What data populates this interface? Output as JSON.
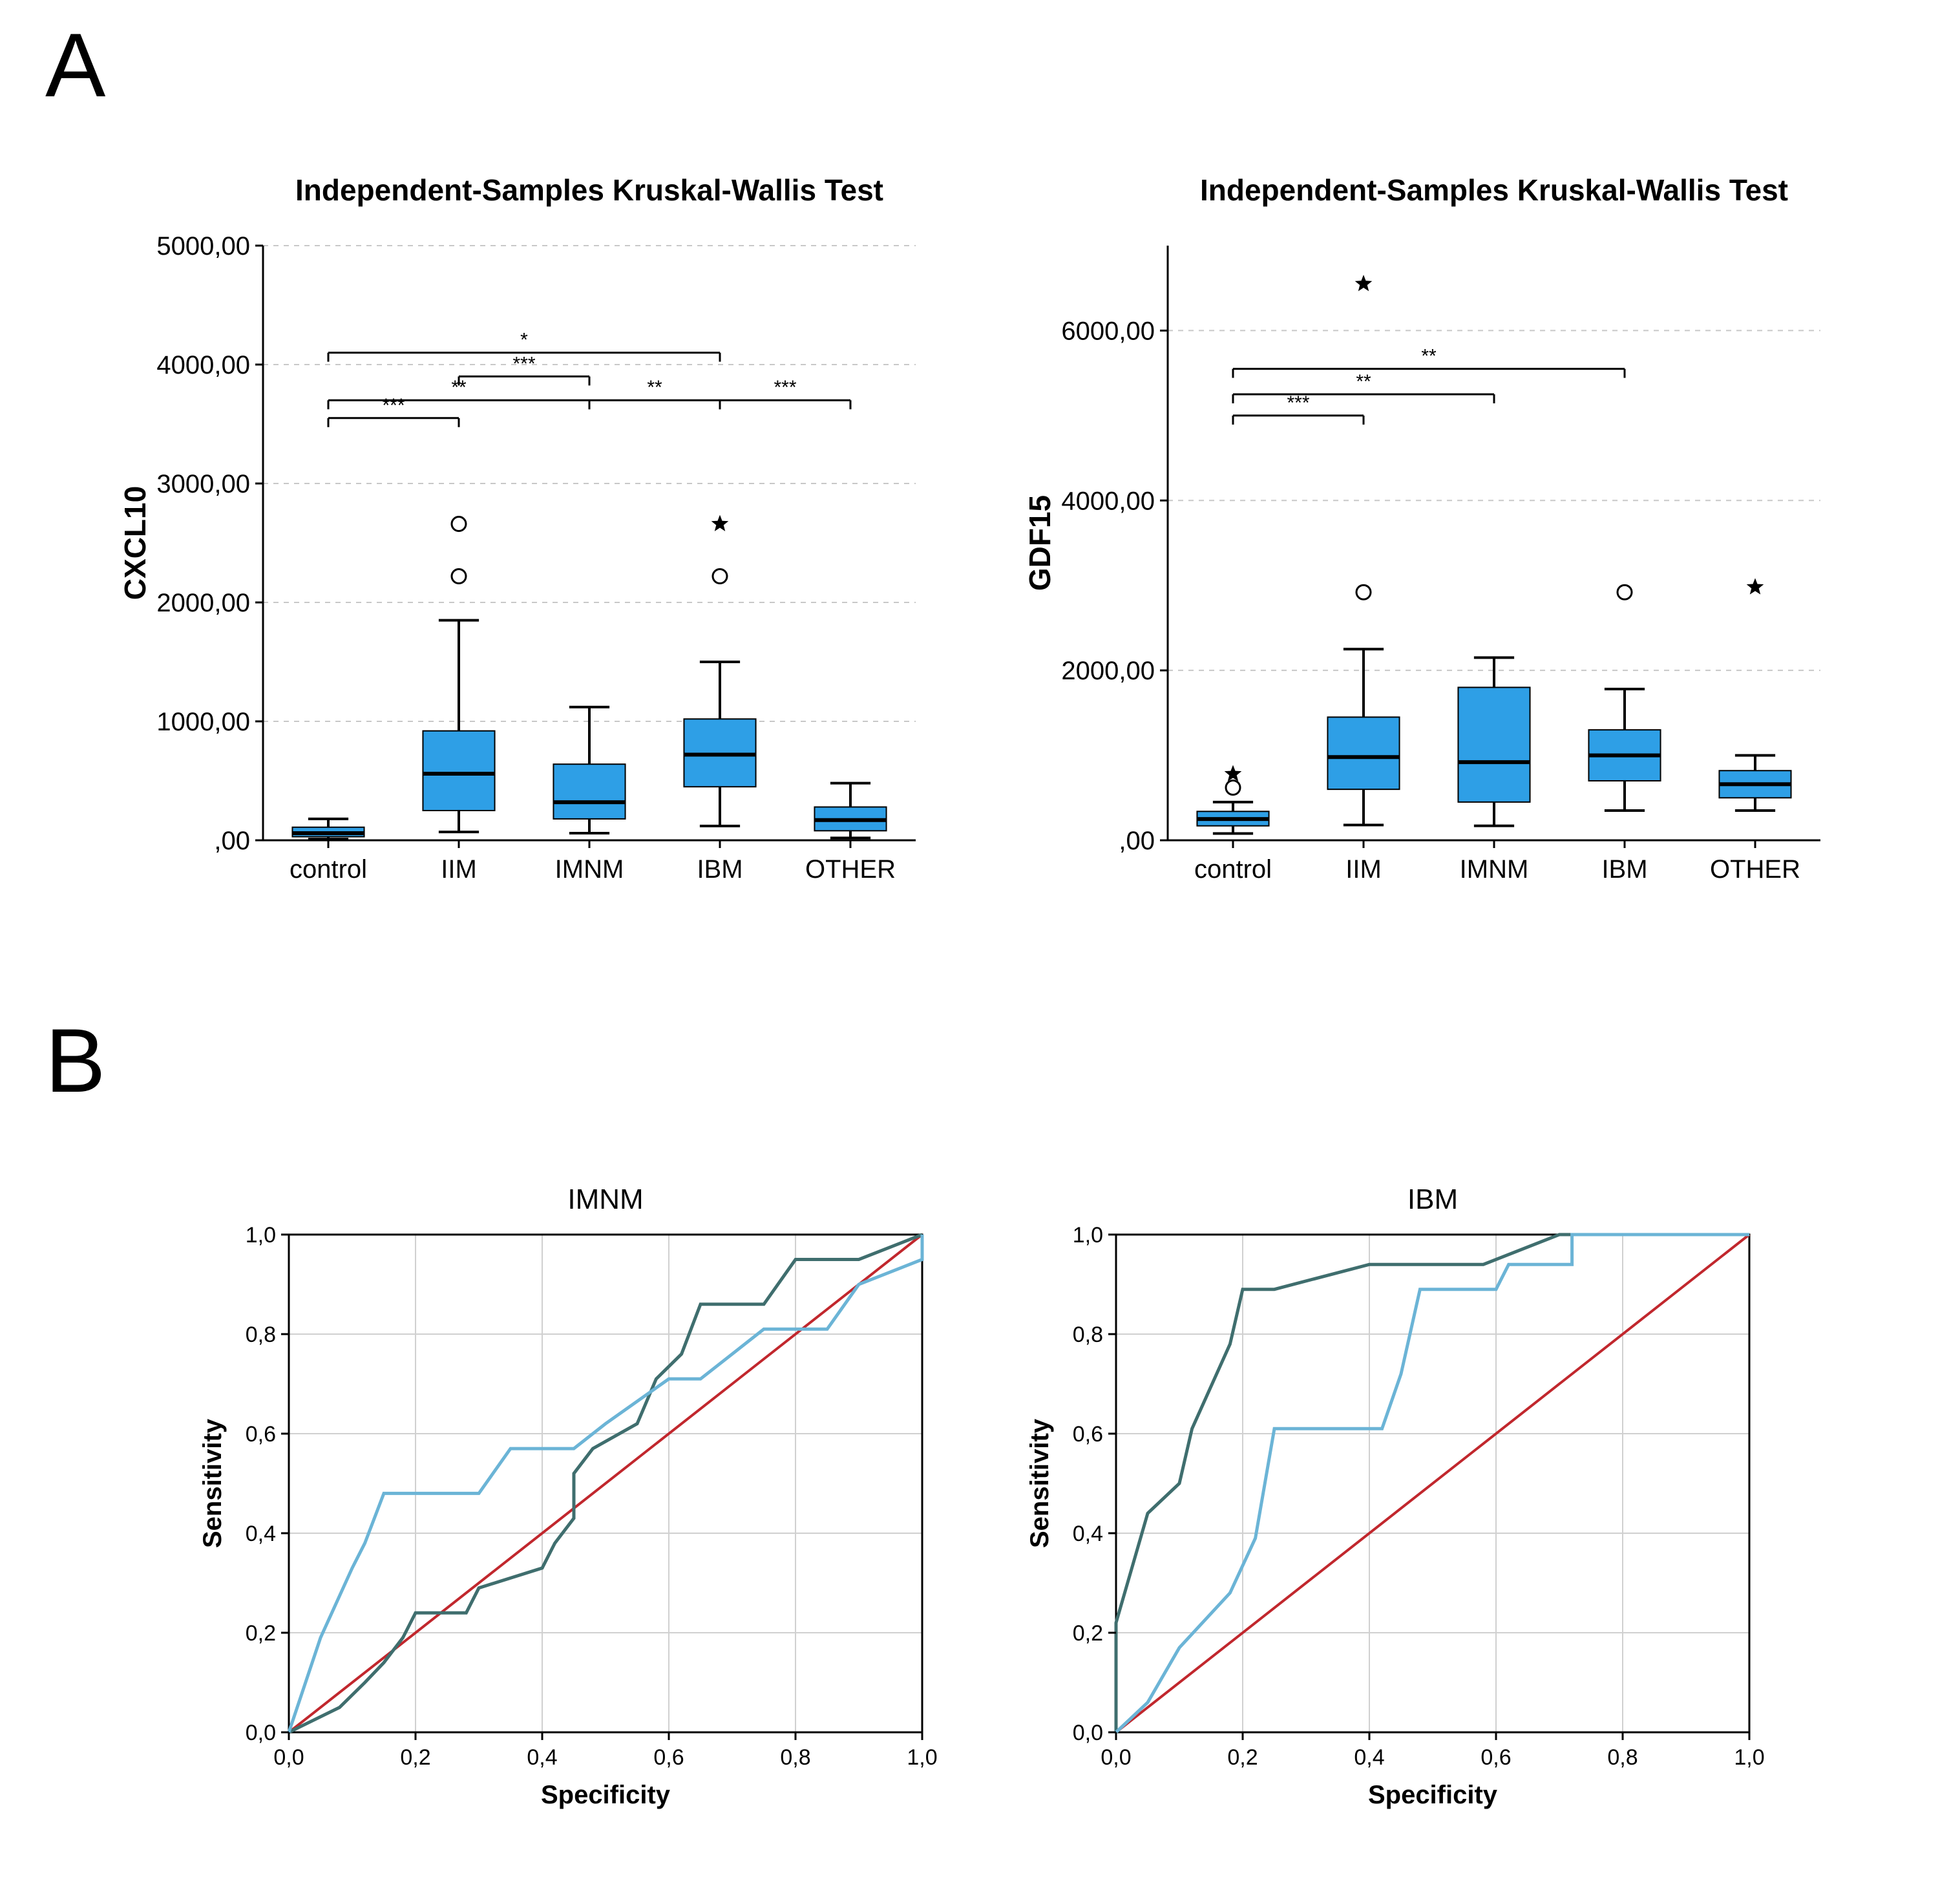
{
  "panel_labels": {
    "A": "A",
    "B": "B"
  },
  "boxplots": {
    "title": "Independent-Samples Kruskal-Wallis Test",
    "title_fontsize": 46,
    "title_fontweight": "bold",
    "axis_label_fontsize": 46,
    "tick_fontsize": 40,
    "bg_color": "#ffffff",
    "grid_color": "#c8c8c8",
    "grid_dash": "8,8",
    "axis_color": "#000000",
    "box_fill": "#2e9fe6",
    "box_stroke": "#000000",
    "median_color": "#000000",
    "whisker_color": "#000000",
    "outlier_stroke": "#000000",
    "categories": [
      "control",
      "IIM",
      "IMNM",
      "IBM",
      "OTHER"
    ],
    "left": {
      "ylabel": "CXCL10",
      "ylim": [
        0,
        5000
      ],
      "ytick_step": 1000,
      "yticks": [
        0,
        1000,
        2000,
        3000,
        4000,
        5000
      ],
      "ytick_labels": [
        ",00",
        "1000,00",
        "2000,00",
        "3000,00",
        "4000,00",
        "5000,00"
      ],
      "boxes": [
        {
          "q1": 30,
          "median": 60,
          "q3": 110,
          "wlo": 10,
          "whi": 180
        },
        {
          "q1": 250,
          "median": 560,
          "q3": 920,
          "wlo": 70,
          "whi": 1850
        },
        {
          "q1": 180,
          "median": 320,
          "q3": 640,
          "wlo": 60,
          "whi": 1120
        },
        {
          "q1": 450,
          "median": 720,
          "q3": 1020,
          "wlo": 120,
          "whi": 1500
        },
        {
          "q1": 80,
          "median": 170,
          "q3": 280,
          "wlo": 20,
          "whi": 480
        }
      ],
      "outliers": [
        {
          "cat": 1,
          "y": 2220,
          "type": "circle"
        },
        {
          "cat": 1,
          "y": 2660,
          "type": "circle"
        },
        {
          "cat": 3,
          "y": 2220,
          "type": "circle"
        },
        {
          "cat": 3,
          "y": 2660,
          "type": "star"
        }
      ],
      "sig_bars": [
        {
          "from": 0,
          "to": 3,
          "y": 4100,
          "label": "*"
        },
        {
          "from": 1,
          "to": 2,
          "y": 3900,
          "label": "***"
        },
        {
          "from": 0,
          "to": 2,
          "y": 3700,
          "label": "**"
        },
        {
          "from": 0,
          "to": 1,
          "y": 3550,
          "label": "***"
        },
        {
          "from": 2,
          "to": 3,
          "y": 3700,
          "label": "**"
        },
        {
          "from": 3,
          "to": 4,
          "y": 3700,
          "label": "***"
        }
      ]
    },
    "right": {
      "ylabel": "GDF15",
      "ylim": [
        0,
        7000
      ],
      "ytick_step": 2000,
      "yticks": [
        0,
        2000,
        4000,
        6000
      ],
      "ytick_labels": [
        ",00",
        "2000,00",
        "4000,00",
        "6000,00"
      ],
      "boxes": [
        {
          "q1": 170,
          "median": 250,
          "q3": 340,
          "wlo": 80,
          "whi": 450
        },
        {
          "q1": 600,
          "median": 980,
          "q3": 1450,
          "wlo": 180,
          "whi": 2250
        },
        {
          "q1": 450,
          "median": 920,
          "q3": 1800,
          "wlo": 170,
          "whi": 2150
        },
        {
          "q1": 700,
          "median": 1000,
          "q3": 1300,
          "wlo": 350,
          "whi": 1780
        },
        {
          "q1": 500,
          "median": 660,
          "q3": 820,
          "wlo": 350,
          "whi": 1000
        }
      ],
      "outliers": [
        {
          "cat": 0,
          "y": 620,
          "type": "circle"
        },
        {
          "cat": 0,
          "y": 780,
          "type": "star"
        },
        {
          "cat": 1,
          "y": 2920,
          "type": "circle"
        },
        {
          "cat": 1,
          "y": 6550,
          "type": "star"
        },
        {
          "cat": 3,
          "y": 2920,
          "type": "circle"
        },
        {
          "cat": 4,
          "y": 2980,
          "type": "star"
        }
      ],
      "sig_bars": [
        {
          "from": 0,
          "to": 3,
          "y": 5550,
          "label": "**"
        },
        {
          "from": 0,
          "to": 2,
          "y": 5250,
          "label": "**"
        },
        {
          "from": 0,
          "to": 1,
          "y": 5000,
          "label": "***"
        }
      ]
    }
  },
  "roc": {
    "axis_label_fontsize": 40,
    "axis_label_fontweight": "bold",
    "tick_fontsize": 34,
    "title_fontsize": 44,
    "bg_color": "#ffffff",
    "grid_color": "#d0d0d0",
    "axis_color": "#000000",
    "diag_color": "#c1272d",
    "curve1_color": "#3f6e6e",
    "curve2_color": "#6bb4d6",
    "xlabel": "Specificity",
    "ylabel": "Sensitivity",
    "xlim": [
      0,
      1
    ],
    "ylim": [
      0,
      1
    ],
    "xticks": [
      0,
      0.2,
      0.4,
      0.6,
      0.8,
      1.0
    ],
    "yticks": [
      0,
      0.2,
      0.4,
      0.6,
      0.8,
      1.0
    ],
    "xtick_labels": [
      "0,0",
      "0,2",
      "0,4",
      "0,6",
      "0,8",
      "1,0"
    ],
    "ytick_labels": [
      "0,0",
      "0,2",
      "0,4",
      "0,6",
      "0,8",
      "1,0"
    ],
    "left": {
      "title": "IMNM",
      "curve1": [
        [
          0.0,
          0.0
        ],
        [
          0.08,
          0.05
        ],
        [
          0.12,
          0.1
        ],
        [
          0.15,
          0.14
        ],
        [
          0.18,
          0.19
        ],
        [
          0.2,
          0.24
        ],
        [
          0.28,
          0.24
        ],
        [
          0.3,
          0.29
        ],
        [
          0.4,
          0.33
        ],
        [
          0.42,
          0.38
        ],
        [
          0.45,
          0.43
        ],
        [
          0.45,
          0.52
        ],
        [
          0.48,
          0.57
        ],
        [
          0.55,
          0.62
        ],
        [
          0.58,
          0.71
        ],
        [
          0.62,
          0.76
        ],
        [
          0.65,
          0.86
        ],
        [
          0.75,
          0.86
        ],
        [
          0.8,
          0.95
        ],
        [
          0.9,
          0.95
        ],
        [
          1.0,
          1.0
        ]
      ],
      "curve2": [
        [
          0.0,
          0.0
        ],
        [
          0.05,
          0.19
        ],
        [
          0.1,
          0.33
        ],
        [
          0.12,
          0.38
        ],
        [
          0.15,
          0.48
        ],
        [
          0.3,
          0.48
        ],
        [
          0.35,
          0.57
        ],
        [
          0.45,
          0.57
        ],
        [
          0.5,
          0.62
        ],
        [
          0.6,
          0.71
        ],
        [
          0.65,
          0.71
        ],
        [
          0.75,
          0.81
        ],
        [
          0.85,
          0.81
        ],
        [
          0.9,
          0.9
        ],
        [
          1.0,
          0.95
        ],
        [
          1.0,
          1.0
        ]
      ]
    },
    "right": {
      "title": "IBM",
      "curve1": [
        [
          0.0,
          0.0
        ],
        [
          0.0,
          0.22
        ],
        [
          0.05,
          0.44
        ],
        [
          0.1,
          0.5
        ],
        [
          0.12,
          0.61
        ],
        [
          0.18,
          0.78
        ],
        [
          0.2,
          0.89
        ],
        [
          0.25,
          0.89
        ],
        [
          0.4,
          0.94
        ],
        [
          0.58,
          0.94
        ],
        [
          0.7,
          1.0
        ],
        [
          1.0,
          1.0
        ]
      ],
      "curve2": [
        [
          0.0,
          0.0
        ],
        [
          0.05,
          0.06
        ],
        [
          0.1,
          0.17
        ],
        [
          0.18,
          0.28
        ],
        [
          0.22,
          0.39
        ],
        [
          0.25,
          0.61
        ],
        [
          0.42,
          0.61
        ],
        [
          0.45,
          0.72
        ],
        [
          0.48,
          0.89
        ],
        [
          0.6,
          0.89
        ],
        [
          0.62,
          0.94
        ],
        [
          0.72,
          0.94
        ],
        [
          0.72,
          1.0
        ],
        [
          1.0,
          1.0
        ]
      ]
    }
  }
}
